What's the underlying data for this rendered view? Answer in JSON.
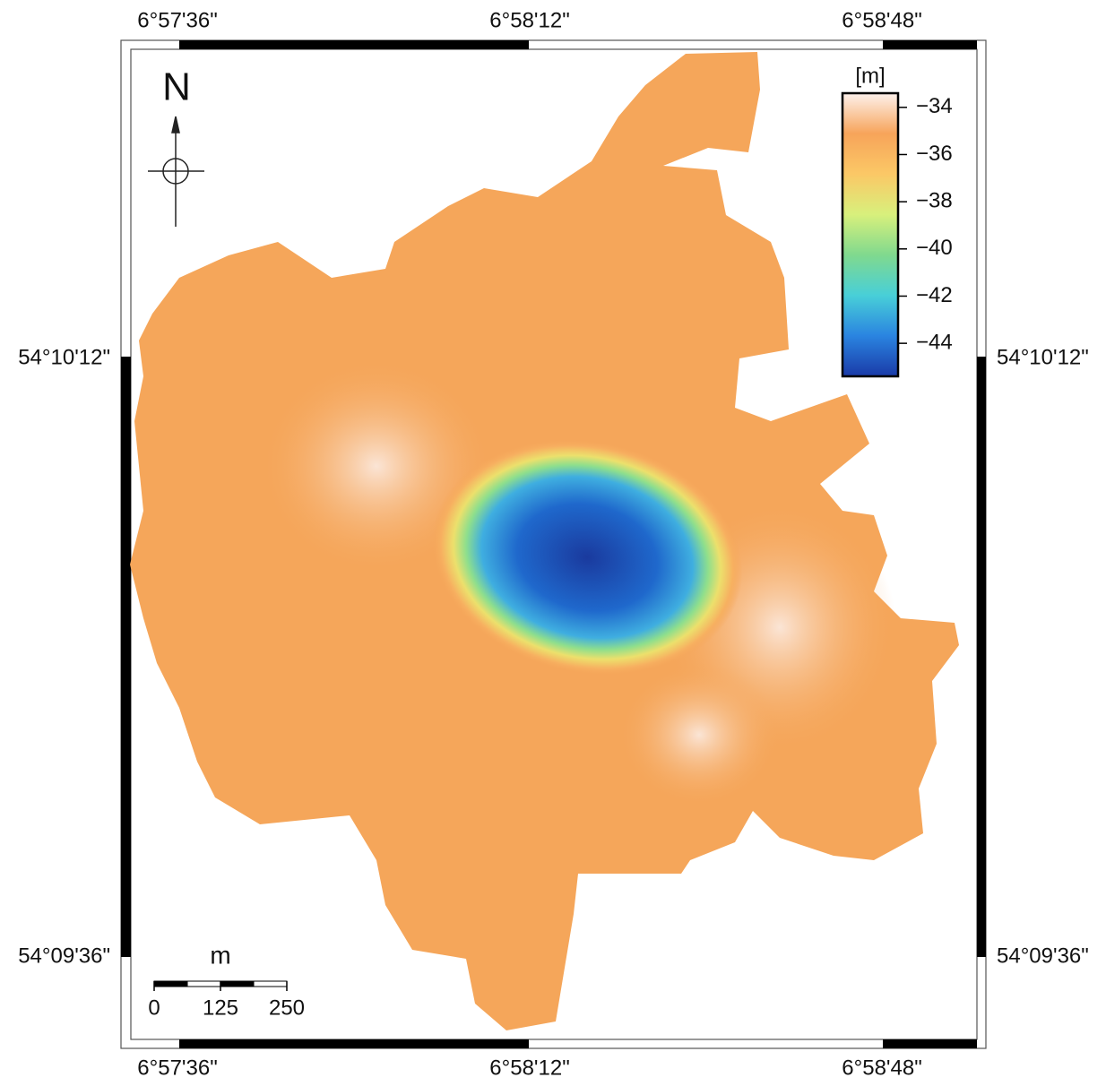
{
  "map": {
    "lon_labels": [
      "6°57'36\"",
      "6°58'12\"",
      "6°58'48\""
    ],
    "lat_labels": [
      "54°10'12\"",
      "54°09'36\""
    ],
    "north": "N",
    "colorbar": {
      "unit": "[m]",
      "clim": [
        -33.4,
        -45.4
      ],
      "ticks": [
        {
          "value": -34,
          "label": "−34"
        },
        {
          "value": -36,
          "label": "−36"
        },
        {
          "value": -38,
          "label": "−38"
        },
        {
          "value": -40,
          "label": "−40"
        },
        {
          "value": -42,
          "label": "−42"
        },
        {
          "value": -44,
          "label": "−44"
        }
      ],
      "colors": [
        "#fdf1ec",
        "#f7a45a",
        "#fbc866",
        "#d8f07c",
        "#80d98e",
        "#48cfd8",
        "#2a84e0",
        "#1a3aa8"
      ]
    },
    "scale_bar": {
      "unit": "m",
      "ticks": [
        0,
        125,
        250
      ]
    }
  }
}
